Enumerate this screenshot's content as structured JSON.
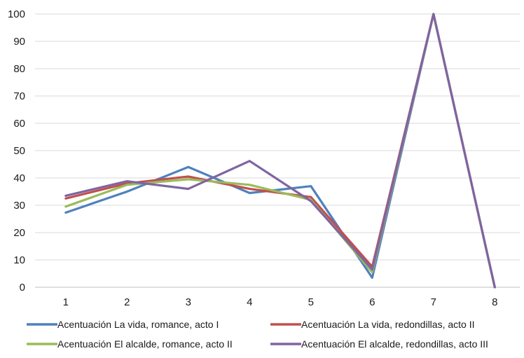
{
  "chart_data": {
    "type": "line",
    "title": "",
    "xlabel": "",
    "ylabel": "",
    "categories": [
      "1",
      "2",
      "3",
      "4",
      "5",
      "6",
      "7",
      "8"
    ],
    "y_ticks": [
      "0",
      "10",
      "20",
      "30",
      "40",
      "50",
      "60",
      "70",
      "80",
      "90",
      "100"
    ],
    "ylim": [
      0,
      100
    ],
    "grid": "horizontal",
    "legend_position": "bottom",
    "series": [
      {
        "name": "Acentuación La vida, romance, acto I",
        "color": "#4f81bd",
        "values": [
          27.3,
          35,
          44,
          34.5,
          37,
          3.5,
          100,
          0
        ]
      },
      {
        "name": "Acentuación La vida, redondillas, acto II",
        "color": "#c0504d",
        "values": [
          32.5,
          38,
          40.5,
          36,
          33,
          7.5,
          100,
          0
        ]
      },
      {
        "name": "Acentuación El alcalde, romance, acto II",
        "color": "#9bbb59",
        "values": [
          29.5,
          37.5,
          39.5,
          37.5,
          32,
          5.5,
          100,
          0
        ]
      },
      {
        "name": "Acentuación El alcalde, redondillas, acto III",
        "color": "#8064a2",
        "values": [
          33.5,
          38.8,
          36,
          46.2,
          31.5,
          6.5,
          100,
          0
        ]
      }
    ]
  }
}
